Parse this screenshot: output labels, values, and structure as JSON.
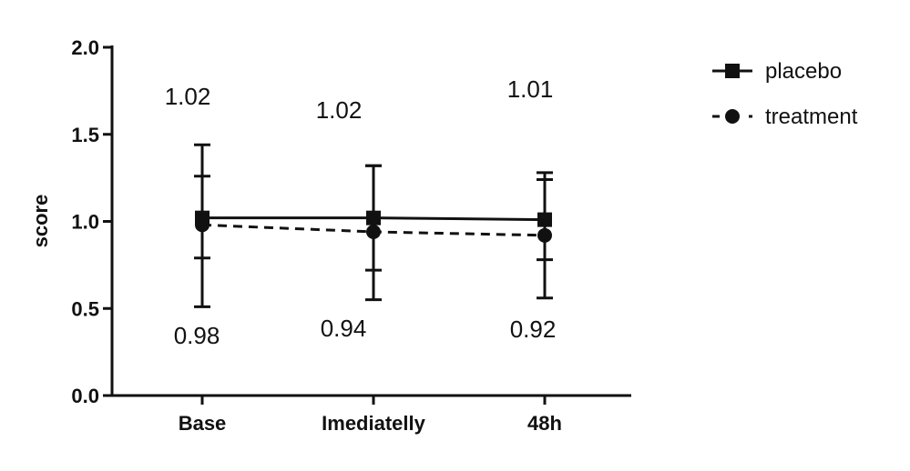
{
  "chart_data": {
    "type": "line",
    "ylabel": "score",
    "xlabel": "",
    "ylim": [
      0,
      2.0
    ],
    "yticks": [
      0.0,
      0.5,
      1.0,
      1.5,
      2.0
    ],
    "ytick_labels": [
      "0.0",
      "0.5",
      "1.0",
      "1.5",
      "2.0"
    ],
    "categories": [
      "Base",
      "Imediatelly",
      "48h"
    ],
    "legend_position": "top-right",
    "series": [
      {
        "name": "placebo",
        "marker": "square",
        "line": "solid",
        "values": [
          1.02,
          1.02,
          1.01
        ],
        "labels": [
          "1.02",
          "1.02",
          "1.01"
        ],
        "err_low": [
          0.79,
          0.72,
          0.78
        ],
        "err_high": [
          1.26,
          1.32,
          1.24
        ]
      },
      {
        "name": "treatment",
        "marker": "circle",
        "line": "dashed",
        "values": [
          0.98,
          0.94,
          0.92
        ],
        "labels": [
          "0.98",
          "0.94",
          "0.92"
        ],
        "err_low": [
          0.51,
          0.55,
          0.56
        ],
        "err_high": [
          1.44,
          1.32,
          1.28
        ]
      }
    ]
  }
}
